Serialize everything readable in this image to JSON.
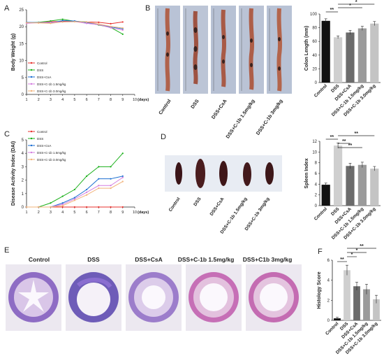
{
  "panel_letters": {
    "a": "A",
    "b": "B",
    "c": "C",
    "d": "D",
    "e": "E",
    "f": "F"
  },
  "colors": {
    "control": "#e8322e",
    "dss": "#1bb01b",
    "csa": "#1c6fd1",
    "c1b_low": "#d47fe0",
    "c1b_high": "#f2b37a",
    "bar_control": "#111111",
    "bar_dss": "#cfcfcf",
    "bar_csa": "#6b6b6b",
    "bar_low": "#9b9b9b",
    "bar_high": "#c4c4c4"
  },
  "panelA": {
    "chart_data": {
      "type": "line",
      "ylabel": "Body Weight (g)",
      "xlabel": "(days)",
      "x": [
        1,
        2,
        3,
        4,
        5,
        6,
        7,
        8,
        9
      ],
      "x_ticks": [
        "1",
        "2",
        "3",
        "4",
        "5",
        "6",
        "7",
        "8",
        "9",
        "10"
      ],
      "y_ticks": [
        "0",
        "5",
        "10",
        "15",
        "20",
        "25"
      ],
      "ylim": [
        0,
        25
      ],
      "series": [
        {
          "name": "Control",
          "values": [
            21.2,
            21.2,
            21.5,
            21.6,
            21.6,
            21.4,
            21.3,
            20.9,
            21.4
          ]
        },
        {
          "name": "DSS",
          "values": [
            21.1,
            21.3,
            21.7,
            22.2,
            21.6,
            21.4,
            20.5,
            19.8,
            17.8
          ]
        },
        {
          "name": "DSS+CsA",
          "values": [
            21.3,
            21.2,
            21.1,
            21.8,
            21.7,
            21.2,
            20.7,
            19.9,
            19.4
          ]
        },
        {
          "name": "DSS+C-1b 1.5mg/kg",
          "values": [
            21.0,
            21.2,
            21.3,
            21.4,
            21.5,
            21.0,
            20.6,
            19.7,
            19.0
          ]
        },
        {
          "name": "DSS+C-1b 3.0mg/kg",
          "values": [
            21.2,
            21.1,
            21.0,
            21.4,
            21.5,
            21.4,
            20.8,
            20.1,
            19.6
          ]
        }
      ]
    }
  },
  "panelB": {
    "image_labels": [
      "Control",
      "DSS",
      "DSS+CsA",
      "DSS+C-1b 1.5mg/kg",
      "DSS+C-1b 3mg/kg"
    ],
    "chart_data": {
      "type": "bar",
      "ylabel": "Colon Length (mm)",
      "categories": [
        "Control",
        "DSS",
        "DSS+CsA",
        "DSS+C-1b 1.5mg/kg",
        "DSS+C-1b 3.0mg/kg"
      ],
      "values": [
        90,
        66,
        73,
        79,
        86
      ],
      "errors": [
        3,
        2,
        3,
        3,
        3
      ],
      "y_ticks": [
        "0",
        "20",
        "40",
        "60",
        "80",
        "100"
      ],
      "ylim": [
        0,
        100
      ],
      "significance": [
        "**",
        "*",
        "*"
      ]
    }
  },
  "panelC": {
    "chart_data": {
      "type": "line",
      "ylabel": "Disease Activity Index (DAI)",
      "xlabel": "(days)",
      "x": [
        1,
        2,
        3,
        4,
        5,
        6,
        7,
        8,
        9
      ],
      "x_ticks": [
        "1",
        "2",
        "3",
        "4",
        "5",
        "6",
        "7",
        "8",
        "9",
        "10"
      ],
      "y_ticks": [
        "0",
        "1",
        "2",
        "3",
        "4",
        "5"
      ],
      "ylim": [
        0,
        5
      ],
      "series": [
        {
          "name": "Control",
          "values": [
            0,
            0,
            0,
            0,
            0,
            0,
            0,
            0,
            0
          ]
        },
        {
          "name": "DSS",
          "values": [
            0,
            0,
            0.3,
            0.8,
            1.3,
            2.3,
            3.0,
            3.0,
            4.0
          ]
        },
        {
          "name": "DSS+CsA",
          "values": [
            0,
            0,
            0,
            0.3,
            0.7,
            1.3,
            2.1,
            2.1,
            2.3
          ]
        },
        {
          "name": "DSS+C-1b 1.5mg/kg",
          "values": [
            0,
            0,
            0,
            0.2,
            0.6,
            1.1,
            1.6,
            1.6,
            2.2
          ]
        },
        {
          "name": "DSS+C-1b 3.0mg/kg",
          "values": [
            0,
            0,
            0,
            0.1,
            0.5,
            0.9,
            1.4,
            1.4,
            1.9
          ]
        }
      ]
    }
  },
  "panelD": {
    "image_labels": [
      "Control",
      "DSS",
      "DSS+CsA",
      "DSS+C-1b 1.5mg/kg",
      "DSS+C-1b 3mg/kg"
    ],
    "chart_data": {
      "type": "bar",
      "ylabel": "Spleen Index",
      "categories": [
        "Control",
        "DSS",
        "DSS+CsA",
        "DSS+C-1b 1.5mg/kg",
        "DSS+C-1b 3.0mg/kg"
      ],
      "values": [
        3.9,
        11.2,
        7.4,
        7.6,
        6.9
      ],
      "errors": [
        0.3,
        0.5,
        0.5,
        0.5,
        0.4
      ],
      "y_ticks": [
        "0",
        "2",
        "4",
        "6",
        "8",
        "10",
        "12"
      ],
      "ylim": [
        0,
        12
      ],
      "significance": [
        "**",
        "**",
        "**",
        "**"
      ]
    }
  },
  "panelE": {
    "image_labels": [
      "Control",
      "DSS",
      "DSS+CsA",
      "DSS+C-1b 1.5mg/kg",
      "DSS+C1b 3mg/kg"
    ]
  },
  "panelF": {
    "chart_data": {
      "type": "bar",
      "ylabel": "Histology Score",
      "categories": [
        "Control",
        "DSS",
        "DSS+CsA",
        "DSS+C-1b 1.5mg/kg",
        "DSS+C-1b 3.0mg/kg"
      ],
      "values": [
        0.2,
        5.0,
        3.4,
        3.1,
        2.1
      ],
      "errors": [
        0.1,
        0.5,
        0.4,
        0.5,
        0.4
      ],
      "y_ticks": [
        "0",
        "2",
        "4",
        "6"
      ],
      "ylim": [
        0,
        6
      ],
      "significance": [
        "**",
        "*",
        "*",
        "**"
      ]
    }
  }
}
